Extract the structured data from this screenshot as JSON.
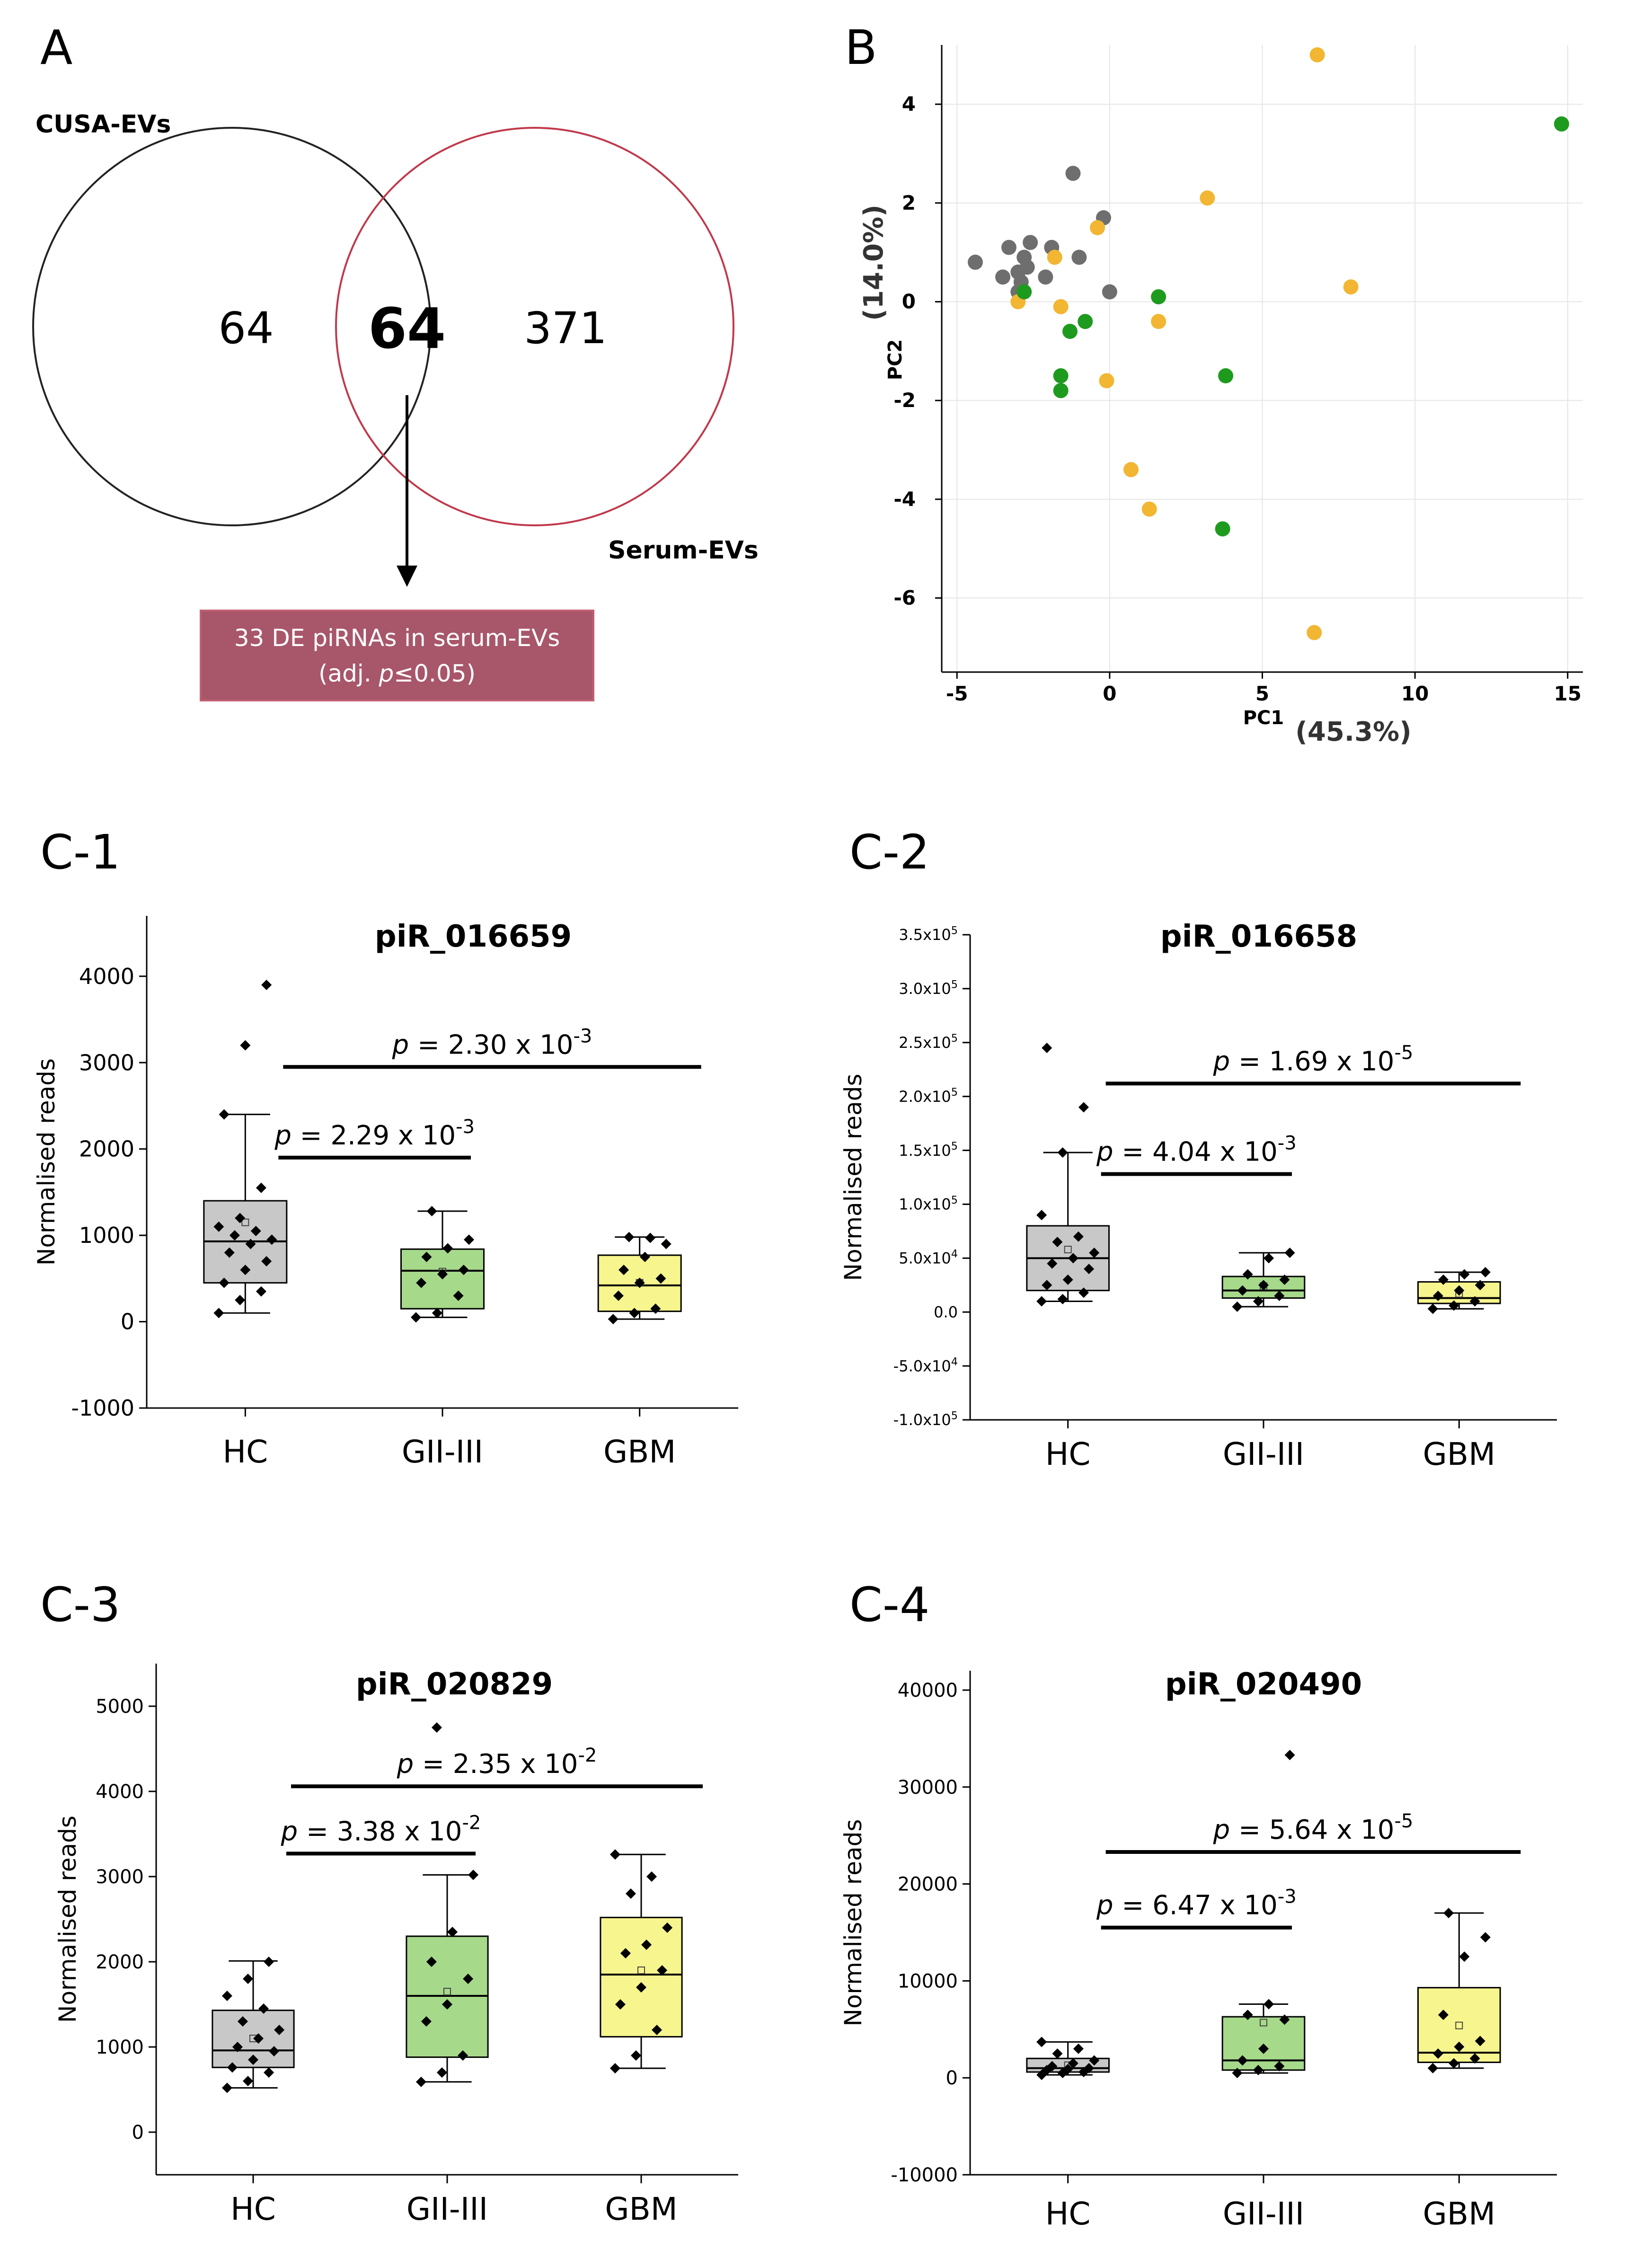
{
  "panels": {
    "A": "A",
    "B": "B",
    "C1": "C-1",
    "C2": "C-2",
    "C3": "C-3",
    "C4": "C-4"
  },
  "venn": {
    "left_label": "CUSA-EVs",
    "right_label": "Serum-EVs",
    "left_only": "64",
    "intersection": "64",
    "right_only": "371",
    "callout_line1": "33 DE piRNAs in serum-EVs",
    "callout_line2_prefix": "(adj. ",
    "callout_line2_p": "p",
    "callout_line2_suffix": "≤0.05)",
    "colors": {
      "left": "#222222",
      "right": "#c0394b",
      "callout_fill": "#a8566a",
      "callout_border": "#c25f74"
    }
  },
  "chart_data": [
    {
      "type": "scatter",
      "panel": "B",
      "xlabel": "PC1",
      "xlabel_pct": "(45.3%)",
      "ylabel": "PC2",
      "ylabel_pct": "(14.0%)",
      "xlim": [
        -5.5,
        15.5
      ],
      "ylim": [
        -7.5,
        5.2
      ],
      "xticks": [
        -5,
        0,
        5,
        10,
        15
      ],
      "yticks": [
        -6,
        -4,
        -2,
        0,
        2,
        4
      ],
      "grid": true,
      "series": [
        {
          "color": "#6e6e6e",
          "points": [
            [
              -4.4,
              0.8
            ],
            [
              -3.3,
              1.1
            ],
            [
              -3.0,
              0.6
            ],
            [
              -2.8,
              0.9
            ],
            [
              -2.6,
              1.2
            ],
            [
              -2.9,
              0.4
            ],
            [
              -3.5,
              0.5
            ],
            [
              -2.7,
              0.7
            ],
            [
              -2.1,
              0.5
            ],
            [
              -1.9,
              1.1
            ],
            [
              -1.2,
              2.6
            ],
            [
              -1.0,
              0.9
            ],
            [
              -0.2,
              1.7
            ],
            [
              0.0,
              0.2
            ],
            [
              -3.0,
              0.2
            ]
          ]
        },
        {
          "color": "#f2b632",
          "points": [
            [
              6.8,
              5.0
            ],
            [
              3.2,
              2.1
            ],
            [
              7.9,
              0.3
            ],
            [
              -0.4,
              1.5
            ],
            [
              -1.8,
              0.9
            ],
            [
              1.6,
              -0.4
            ],
            [
              -3.0,
              0.0
            ],
            [
              -1.6,
              -0.1
            ],
            [
              -0.1,
              -1.6
            ],
            [
              0.7,
              -3.4
            ],
            [
              1.3,
              -4.2
            ],
            [
              6.7,
              -6.7
            ]
          ]
        },
        {
          "color": "#1e9b1e",
          "points": [
            [
              14.8,
              3.6
            ],
            [
              1.6,
              0.1
            ],
            [
              -0.8,
              -0.4
            ],
            [
              -1.3,
              -0.6
            ],
            [
              -1.6,
              -1.5
            ],
            [
              -1.6,
              -1.8
            ],
            [
              3.8,
              -1.5
            ],
            [
              3.7,
              -4.6
            ],
            [
              -2.8,
              0.2
            ]
          ]
        }
      ]
    },
    {
      "type": "box",
      "panel": "C-1",
      "title": "piR_016659",
      "ylabel": "Normalised reads",
      "categories": [
        "HC",
        "GII-III",
        "GBM"
      ],
      "ylim": [
        -1000,
        4700
      ],
      "yticks": [
        -1000,
        0,
        1000,
        2000,
        3000,
        4000
      ],
      "ytick_labels": [
        "-1000",
        "0",
        "1000",
        "2000",
        "3000",
        "4000"
      ],
      "boxes": [
        {
          "name": "HC",
          "color": "#c8c8c8",
          "whisker_low": 100,
          "q1": 450,
          "median": 930,
          "q3": 1400,
          "whisker_high": 2400,
          "mean": 1150,
          "points": [
            100,
            250,
            350,
            450,
            600,
            700,
            800,
            900,
            950,
            1000,
            1050,
            1100,
            1200,
            1550,
            2400,
            3200,
            3900
          ]
        },
        {
          "name": "GII-III",
          "color": "#a6d98a",
          "whisker_low": 50,
          "q1": 150,
          "median": 590,
          "q3": 840,
          "whisker_high": 1280,
          "mean": 580,
          "points": [
            50,
            100,
            300,
            450,
            550,
            600,
            750,
            850,
            950,
            1280
          ]
        },
        {
          "name": "GBM",
          "color": "#f7f58e",
          "whisker_low": 30,
          "q1": 120,
          "median": 420,
          "q3": 770,
          "whisker_high": 980,
          "mean": 450,
          "points": [
            30,
            100,
            150,
            300,
            450,
            500,
            600,
            750,
            900,
            980,
            970
          ]
        }
      ],
      "comparisons": [
        {
          "from": 0,
          "to": 1,
          "y": 1900,
          "p_prefix": "p",
          "p_text": " = 2.29 x 10",
          "p_exp": "-3"
        },
        {
          "from": 0,
          "to": 2,
          "y": 2950,
          "p_prefix": "p",
          "p_text": " = 2.30 x 10",
          "p_exp": "-3"
        }
      ]
    },
    {
      "type": "box",
      "panel": "C-2",
      "title": "piR_016658",
      "ylabel": "Normalised reads",
      "categories": [
        "HC",
        "GII-III",
        "GBM"
      ],
      "ylim": [
        -100000,
        350000
      ],
      "yticks": [
        -100000,
        -50000,
        0,
        50000,
        100000,
        150000,
        200000,
        250000,
        300000,
        350000
      ],
      "ytick_labels": [
        "-1.0x10^5",
        "-5.0x10^4",
        "0.0",
        "5.0x10^4",
        "1.0x10^5",
        "1.5x10^5",
        "2.0x10^5",
        "2.5x10^5",
        "3.0x10^5",
        "3.5x10^5"
      ],
      "boxes": [
        {
          "name": "HC",
          "color": "#c8c8c8",
          "whisker_low": 10000,
          "q1": 20000,
          "median": 50000,
          "q3": 80000,
          "whisker_high": 148000,
          "mean": 58000,
          "points": [
            10000,
            12000,
            18000,
            25000,
            30000,
            40000,
            45000,
            50000,
            55000,
            65000,
            70000,
            90000,
            148000,
            190000,
            245000
          ]
        },
        {
          "name": "GII-III",
          "color": "#a6d98a",
          "whisker_low": 5000,
          "q1": 13000,
          "median": 20000,
          "q3": 33000,
          "whisker_high": 55000,
          "mean": 24000,
          "points": [
            5000,
            10000,
            15000,
            20000,
            25000,
            30000,
            35000,
            50000,
            55000
          ]
        },
        {
          "name": "GBM",
          "color": "#f7f58e",
          "whisker_low": 3000,
          "q1": 8000,
          "median": 13000,
          "q3": 28000,
          "whisker_high": 37000,
          "mean": 17000,
          "points": [
            3000,
            6000,
            10000,
            15000,
            20000,
            25000,
            30000,
            35000,
            37000
          ]
        }
      ],
      "comparisons": [
        {
          "from": 0,
          "to": 1,
          "y": 128000,
          "p_prefix": "p",
          "p_text": " = 4.04 x 10",
          "p_exp": "-3"
        },
        {
          "from": 0,
          "to": 2,
          "y": 212000,
          "p_prefix": "p",
          "p_text": " = 1.69 x 10",
          "p_exp": "-5"
        }
      ]
    },
    {
      "type": "box",
      "panel": "C-3",
      "title": "piR_020829",
      "ylabel": "Normalised reads",
      "categories": [
        "HC",
        "GII-III",
        "GBM"
      ],
      "ylim": [
        -500,
        5500
      ],
      "yticks": [
        0,
        1000,
        2000,
        3000,
        4000,
        5000
      ],
      "ytick_labels": [
        "0",
        "1000",
        "2000",
        "3000",
        "4000",
        "5000"
      ],
      "boxes": [
        {
          "name": "HC",
          "color": "#c8c8c8",
          "whisker_low": 520,
          "q1": 760,
          "median": 960,
          "q3": 1430,
          "whisker_high": 2010,
          "mean": 1100,
          "points": [
            520,
            600,
            700,
            760,
            850,
            950,
            1000,
            1100,
            1200,
            1300,
            1450,
            1600,
            1800,
            2000
          ]
        },
        {
          "name": "GII-III",
          "color": "#a6d98a",
          "whisker_low": 590,
          "q1": 880,
          "median": 1600,
          "q3": 2300,
          "whisker_high": 3020,
          "mean": 1650,
          "points": [
            590,
            700,
            900,
            1300,
            1500,
            1800,
            2000,
            2350,
            3020,
            4750
          ]
        },
        {
          "name": "GBM",
          "color": "#f7f58e",
          "whisker_low": 750,
          "q1": 1120,
          "median": 1850,
          "q3": 2520,
          "whisker_high": 3260,
          "mean": 1900,
          "points": [
            750,
            900,
            1200,
            1500,
            1700,
            1900,
            2100,
            2200,
            2400,
            2800,
            3000,
            3260
          ]
        }
      ],
      "comparisons": [
        {
          "from": 0,
          "to": 1,
          "y": 3270,
          "p_prefix": "p",
          "p_text": " = 3.38 x 10",
          "p_exp": "-2"
        },
        {
          "from": 0,
          "to": 2,
          "y": 4060,
          "p_prefix": "p",
          "p_text": " = 2.35 x 10",
          "p_exp": "-2"
        }
      ]
    },
    {
      "type": "box",
      "panel": "C-4",
      "title": "piR_020490",
      "ylabel": "Normalised reads",
      "categories": [
        "HC",
        "GII-III",
        "GBM"
      ],
      "ylim": [
        -10000,
        42000
      ],
      "yticks": [
        -10000,
        0,
        10000,
        20000,
        30000,
        40000
      ],
      "ytick_labels": [
        "-10000",
        "0",
        "10000",
        "20000",
        "30000",
        "40000"
      ],
      "boxes": [
        {
          "name": "HC",
          "color": "#c8c8c8",
          "whisker_low": 300,
          "q1": 600,
          "median": 1000,
          "q3": 2000,
          "whisker_high": 3700,
          "mean": 1300,
          "points": [
            300,
            500,
            600,
            800,
            900,
            1000,
            1200,
            1500,
            1800,
            2500,
            3000,
            3700
          ]
        },
        {
          "name": "GII-III",
          "color": "#a6d98a",
          "whisker_low": 500,
          "q1": 800,
          "median": 1800,
          "q3": 6300,
          "whisker_high": 7600,
          "mean": 5700,
          "points": [
            500,
            800,
            1200,
            1800,
            3000,
            6000,
            6500,
            7600,
            33300
          ]
        },
        {
          "name": "GBM",
          "color": "#f7f58e",
          "whisker_low": 1000,
          "q1": 1600,
          "median": 2600,
          "q3": 9300,
          "whisker_high": 17000,
          "mean": 5400,
          "points": [
            1000,
            1500,
            2000,
            2500,
            3200,
            3800,
            6500,
            12500,
            14500,
            17000
          ]
        }
      ],
      "comparisons": [
        {
          "from": 0,
          "to": 1,
          "y": 15500,
          "p_prefix": "p",
          "p_text": " = 6.47 x 10",
          "p_exp": "-3"
        },
        {
          "from": 0,
          "to": 2,
          "y": 23300,
          "p_prefix": "p",
          "p_text": " = 5.64 x 10",
          "p_exp": "-5"
        }
      ]
    }
  ]
}
